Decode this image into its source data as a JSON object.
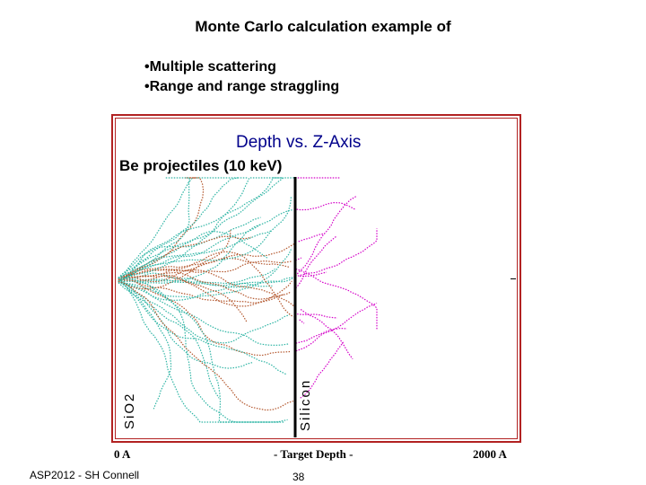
{
  "slide": {
    "title": "Monte Carlo calculation example of",
    "bullets": [
      "•Multiple scattering",
      "•Range and range straggling"
    ],
    "footer": "ASP2012 - SH Connell",
    "page_number": "38"
  },
  "figure": {
    "title": "Depth vs. Z-Axis",
    "subtitle": "Be projectiles (10 keV)",
    "layer_left": "SiO2",
    "layer_right": "Silicon",
    "axis_left": "0 A",
    "axis_center": "- Target Depth -",
    "axis_right": "2000 A",
    "colors": {
      "frame": "#b22222",
      "title": "#00008b",
      "track_sio2": "#2fb5a5",
      "track_sio2_alt": "#b3562c",
      "track_silicon": "#d400c8",
      "interface": "#000000"
    }
  }
}
